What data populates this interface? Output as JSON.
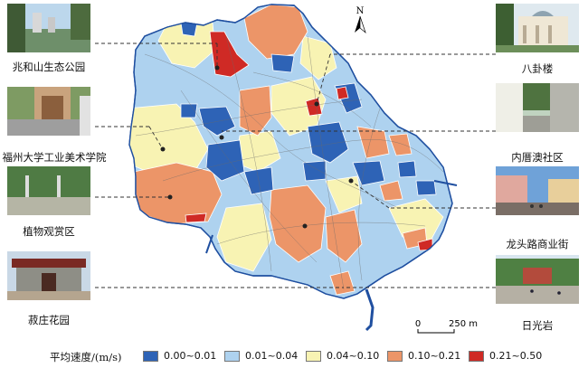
{
  "legend": {
    "title": "平均速度/(m/s)",
    "classes": [
      {
        "label": "0.00~0.01",
        "color": "#2e63b6"
      },
      {
        "label": "0.01~0.04",
        "color": "#aed2ef"
      },
      {
        "label": "0.04~0.10",
        "color": "#f8f3b3"
      },
      {
        "label": "0.10~0.21",
        "color": "#ec9568"
      },
      {
        "label": "0.21~0.50",
        "color": "#cf2a25"
      }
    ]
  },
  "north_arrow": {
    "label": "N"
  },
  "scale_bar": {
    "start": "0",
    "end": "250 m"
  },
  "photos": {
    "left": [
      {
        "caption": "兆和山生态公园"
      },
      {
        "caption": "福州大学工业美术学院"
      },
      {
        "caption": "植物观赏区"
      },
      {
        "caption": "菽庄花园"
      }
    ],
    "right": [
      {
        "caption": "八卦楼"
      },
      {
        "caption": "内厝澳社区"
      },
      {
        "caption": "龙头路商业街"
      },
      {
        "caption": "日光岩"
      }
    ]
  }
}
